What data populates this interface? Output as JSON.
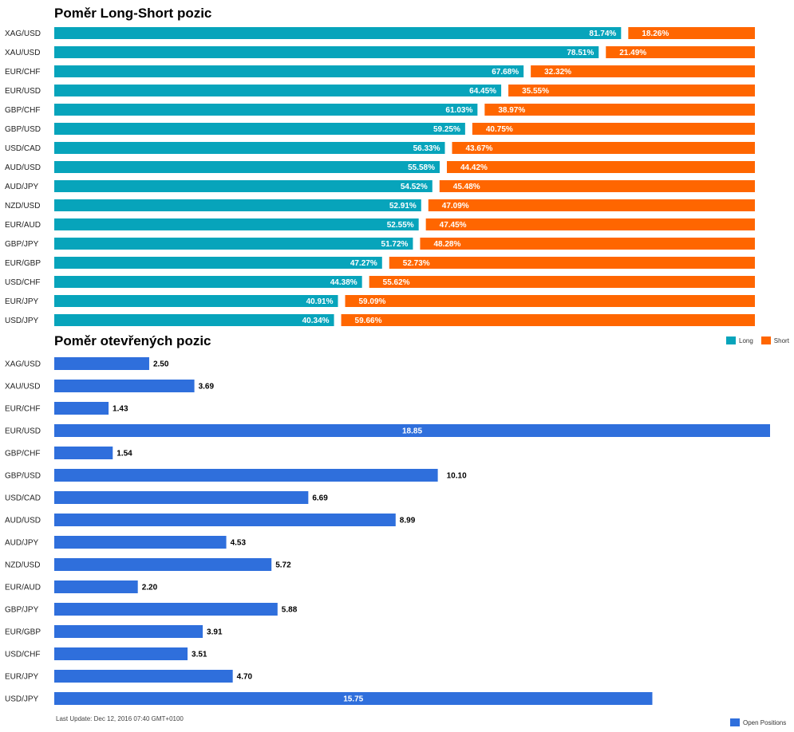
{
  "colors": {
    "long": "#07a4bb",
    "short": "#ff6600",
    "open": "#2f6fdc"
  },
  "footer": {
    "last_update": "Last Update: Dec 12, 2016 07:40 GMT+0100"
  },
  "chart_data": [
    {
      "type": "bar",
      "orientation": "horizontal",
      "stacked": true,
      "title": "Poměr Long-Short pozic",
      "categories": [
        "XAG/USD",
        "XAU/USD",
        "EUR/CHF",
        "EUR/USD",
        "GBP/CHF",
        "GBP/USD",
        "USD/CAD",
        "AUD/USD",
        "AUD/JPY",
        "NZD/USD",
        "EUR/AUD",
        "GBP/JPY",
        "EUR/GBP",
        "USD/CHF",
        "EUR/JPY",
        "USD/JPY"
      ],
      "series": [
        {
          "name": "Long",
          "values": [
            81.74,
            78.51,
            67.68,
            64.45,
            61.03,
            59.25,
            56.33,
            55.58,
            54.52,
            52.91,
            52.55,
            51.72,
            47.27,
            44.38,
            40.91,
            40.34
          ]
        },
        {
          "name": "Short",
          "values": [
            18.26,
            21.49,
            32.32,
            35.55,
            38.97,
            40.75,
            43.67,
            44.42,
            45.48,
            47.09,
            47.45,
            48.28,
            52.73,
            55.62,
            59.09,
            59.66
          ]
        }
      ],
      "value_suffix": "%",
      "legend": "bottom-right",
      "xlim": [
        0,
        100
      ]
    },
    {
      "type": "bar",
      "orientation": "horizontal",
      "title": "Poměr otevřených pozic",
      "categories": [
        "XAG/USD",
        "XAU/USD",
        "EUR/CHF",
        "EUR/USD",
        "GBP/CHF",
        "GBP/USD",
        "USD/CAD",
        "AUD/USD",
        "AUD/JPY",
        "NZD/USD",
        "EUR/AUD",
        "GBP/JPY",
        "EUR/GBP",
        "USD/CHF",
        "EUR/JPY",
        "USD/JPY"
      ],
      "series": [
        {
          "name": "Open Positions",
          "values": [
            2.5,
            3.69,
            1.43,
            18.85,
            1.54,
            10.1,
            6.69,
            8.99,
            4.53,
            5.72,
            2.2,
            5.88,
            3.91,
            3.51,
            4.7,
            15.75
          ]
        }
      ],
      "legend": "bottom-right",
      "xlim": [
        0,
        18.85
      ]
    }
  ]
}
